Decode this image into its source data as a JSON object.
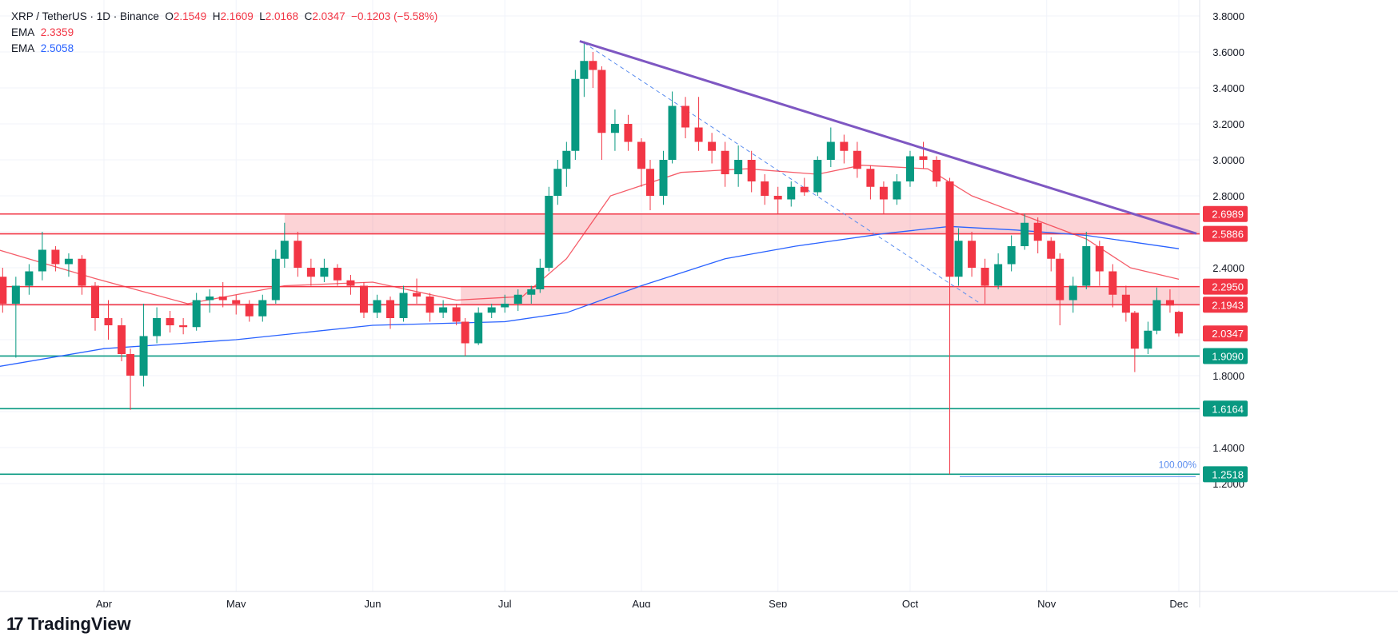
{
  "header": {
    "symbol": "XRP / TetherUS · 1D · Binance",
    "o_label": "O",
    "o": "2.1549",
    "h_label": "H",
    "h": "2.1609",
    "l_label": "L",
    "l": "2.0168",
    "c_label": "C",
    "c": "2.0347",
    "change": "−0.1203 (−5.58%)"
  },
  "ema1": {
    "label": "EMA",
    "value": "2.3359",
    "color": "#f23645"
  },
  "ema2": {
    "label": "EMA",
    "value": "2.5058",
    "color": "#2962ff"
  },
  "brand": "TradingView",
  "chart_data": {
    "type": "candlestick",
    "scale": "linear",
    "ylim": [
      1.16,
      3.86
    ],
    "xlim": [
      "2025-03-08",
      "2025-12-10"
    ],
    "grid": true,
    "y_ticks": [
      "3.8000",
      "3.6000",
      "3.4000",
      "3.2000",
      "3.0000",
      "2.8000",
      "2.4000",
      "1.8000",
      "1.4000",
      "1.2000"
    ],
    "x_ticks": [
      [
        "2025-04-01",
        "Apr"
      ],
      [
        "2025-05-01",
        "May"
      ],
      [
        "2025-06-01",
        "Jun"
      ],
      [
        "2025-07-01",
        "Jul"
      ],
      [
        "2025-08-01",
        "Aug"
      ],
      [
        "2025-09-01",
        "Sep"
      ],
      [
        "2025-10-01",
        "Oct"
      ],
      [
        "2025-11-01",
        "Nov"
      ],
      [
        "2025-12-01",
        "Dec"
      ]
    ],
    "colors": {
      "up": "#089981",
      "down": "#f23645",
      "trendline": "#7e57c2",
      "fib": "#5b8def"
    },
    "candles": [
      [
        "2025-03-09",
        2.35,
        2.4,
        2.15,
        2.2
      ],
      [
        "2025-03-12",
        2.2,
        2.35,
        1.9,
        2.3
      ],
      [
        "2025-03-15",
        2.3,
        2.42,
        2.25,
        2.38
      ],
      [
        "2025-03-18",
        2.38,
        2.6,
        2.33,
        2.5
      ],
      [
        "2025-03-21",
        2.5,
        2.52,
        2.38,
        2.42
      ],
      [
        "2025-03-24",
        2.42,
        2.48,
        2.35,
        2.45
      ],
      [
        "2025-03-27",
        2.45,
        2.47,
        2.25,
        2.3
      ],
      [
        "2025-03-30",
        2.3,
        2.32,
        2.05,
        2.12
      ],
      [
        "2025-04-02",
        2.12,
        2.22,
        2.0,
        2.08
      ],
      [
        "2025-04-05",
        2.08,
        2.12,
        1.88,
        1.92
      ],
      [
        "2025-04-07",
        1.92,
        1.95,
        1.61,
        1.8
      ],
      [
        "2025-04-10",
        1.8,
        2.2,
        1.74,
        2.02
      ],
      [
        "2025-04-13",
        2.02,
        2.18,
        1.98,
        2.12
      ],
      [
        "2025-04-16",
        2.12,
        2.16,
        2.04,
        2.08
      ],
      [
        "2025-04-19",
        2.08,
        2.12,
        2.03,
        2.07
      ],
      [
        "2025-04-22",
        2.07,
        2.26,
        2.05,
        2.22
      ],
      [
        "2025-04-25",
        2.22,
        2.28,
        2.15,
        2.24
      ],
      [
        "2025-04-28",
        2.24,
        2.32,
        2.18,
        2.22
      ],
      [
        "2025-05-01",
        2.22,
        2.25,
        2.14,
        2.2
      ],
      [
        "2025-05-04",
        2.2,
        2.22,
        2.1,
        2.13
      ],
      [
        "2025-05-07",
        2.13,
        2.25,
        2.1,
        2.22
      ],
      [
        "2025-05-10",
        2.22,
        2.5,
        2.2,
        2.45
      ],
      [
        "2025-05-12",
        2.45,
        2.65,
        2.4,
        2.55
      ],
      [
        "2025-05-15",
        2.55,
        2.6,
        2.35,
        2.4
      ],
      [
        "2025-05-18",
        2.4,
        2.45,
        2.3,
        2.35
      ],
      [
        "2025-05-21",
        2.35,
        2.45,
        2.32,
        2.4
      ],
      [
        "2025-05-24",
        2.4,
        2.42,
        2.3,
        2.33
      ],
      [
        "2025-05-27",
        2.33,
        2.36,
        2.25,
        2.3
      ],
      [
        "2025-05-30",
        2.3,
        2.32,
        2.12,
        2.15
      ],
      [
        "2025-06-02",
        2.15,
        2.25,
        2.12,
        2.22
      ],
      [
        "2025-06-05",
        2.22,
        2.24,
        2.06,
        2.12
      ],
      [
        "2025-06-08",
        2.12,
        2.3,
        2.1,
        2.26
      ],
      [
        "2025-06-11",
        2.26,
        2.34,
        2.2,
        2.24
      ],
      [
        "2025-06-14",
        2.24,
        2.26,
        2.1,
        2.15
      ],
      [
        "2025-06-17",
        2.15,
        2.22,
        2.12,
        2.18
      ],
      [
        "2025-06-20",
        2.18,
        2.2,
        2.08,
        2.1
      ],
      [
        "2025-06-22",
        2.1,
        2.12,
        1.91,
        1.98
      ],
      [
        "2025-06-25",
        1.98,
        2.18,
        1.97,
        2.15
      ],
      [
        "2025-06-28",
        2.15,
        2.2,
        2.12,
        2.18
      ],
      [
        "2025-07-01",
        2.18,
        2.25,
        2.15,
        2.2
      ],
      [
        "2025-07-04",
        2.2,
        2.28,
        2.16,
        2.25
      ],
      [
        "2025-07-07",
        2.25,
        2.3,
        2.2,
        2.28
      ],
      [
        "2025-07-09",
        2.28,
        2.45,
        2.26,
        2.4
      ],
      [
        "2025-07-11",
        2.4,
        2.85,
        2.38,
        2.8
      ],
      [
        "2025-07-13",
        2.8,
        3.0,
        2.75,
        2.95
      ],
      [
        "2025-07-15",
        2.95,
        3.1,
        2.85,
        3.05
      ],
      [
        "2025-07-17",
        3.05,
        3.5,
        3.0,
        3.45
      ],
      [
        "2025-07-19",
        3.45,
        3.66,
        3.35,
        3.55
      ],
      [
        "2025-07-21",
        3.55,
        3.6,
        3.4,
        3.5
      ],
      [
        "2025-07-23",
        3.5,
        3.52,
        3.0,
        3.15
      ],
      [
        "2025-07-26",
        3.15,
        3.28,
        3.05,
        3.2
      ],
      [
        "2025-07-29",
        3.2,
        3.25,
        3.05,
        3.1
      ],
      [
        "2025-08-01",
        3.1,
        3.12,
        2.85,
        2.95
      ],
      [
        "2025-08-03",
        2.95,
        3.0,
        2.72,
        2.8
      ],
      [
        "2025-08-06",
        2.8,
        3.05,
        2.75,
        3.0
      ],
      [
        "2025-08-08",
        3.0,
        3.38,
        2.98,
        3.3
      ],
      [
        "2025-08-11",
        3.3,
        3.35,
        3.12,
        3.18
      ],
      [
        "2025-08-14",
        3.18,
        3.35,
        3.05,
        3.1
      ],
      [
        "2025-08-17",
        3.1,
        3.15,
        2.98,
        3.05
      ],
      [
        "2025-08-20",
        3.05,
        3.1,
        2.85,
        2.92
      ],
      [
        "2025-08-23",
        2.92,
        3.08,
        2.85,
        3.0
      ],
      [
        "2025-08-26",
        3.0,
        3.05,
        2.82,
        2.88
      ],
      [
        "2025-08-29",
        2.88,
        2.92,
        2.75,
        2.8
      ],
      [
        "2025-09-01",
        2.8,
        2.85,
        2.7,
        2.78
      ],
      [
        "2025-09-04",
        2.78,
        2.88,
        2.74,
        2.85
      ],
      [
        "2025-09-07",
        2.85,
        2.9,
        2.8,
        2.82
      ],
      [
        "2025-09-10",
        2.82,
        3.02,
        2.8,
        3.0
      ],
      [
        "2025-09-13",
        3.0,
        3.18,
        2.96,
        3.1
      ],
      [
        "2025-09-16",
        3.1,
        3.14,
        2.98,
        3.05
      ],
      [
        "2025-09-19",
        3.05,
        3.1,
        2.9,
        2.95
      ],
      [
        "2025-09-22",
        2.95,
        2.97,
        2.78,
        2.85
      ],
      [
        "2025-09-25",
        2.85,
        2.88,
        2.7,
        2.78
      ],
      [
        "2025-09-28",
        2.78,
        2.92,
        2.75,
        2.88
      ],
      [
        "2025-10-01",
        2.88,
        3.05,
        2.85,
        3.02
      ],
      [
        "2025-10-04",
        3.02,
        3.1,
        2.95,
        3.0
      ],
      [
        "2025-10-07",
        3.0,
        3.02,
        2.85,
        2.88
      ],
      [
        "2025-10-10",
        2.88,
        2.9,
        1.2518,
        2.35
      ],
      [
        "2025-10-12",
        2.35,
        2.62,
        2.3,
        2.55
      ],
      [
        "2025-10-15",
        2.55,
        2.6,
        2.35,
        2.4
      ],
      [
        "2025-10-18",
        2.4,
        2.45,
        2.2,
        2.3
      ],
      [
        "2025-10-21",
        2.3,
        2.48,
        2.28,
        2.42
      ],
      [
        "2025-10-24",
        2.42,
        2.58,
        2.38,
        2.52
      ],
      [
        "2025-10-27",
        2.52,
        2.7,
        2.5,
        2.65
      ],
      [
        "2025-10-30",
        2.65,
        2.68,
        2.48,
        2.55
      ],
      [
        "2025-11-02",
        2.55,
        2.57,
        2.38,
        2.45
      ],
      [
        "2025-11-04",
        2.45,
        2.48,
        2.08,
        2.22
      ],
      [
        "2025-11-07",
        2.22,
        2.35,
        2.15,
        2.3
      ],
      [
        "2025-11-10",
        2.3,
        2.6,
        2.28,
        2.52
      ],
      [
        "2025-11-13",
        2.52,
        2.55,
        2.3,
        2.38
      ],
      [
        "2025-11-16",
        2.38,
        2.42,
        2.18,
        2.25
      ],
      [
        "2025-11-19",
        2.25,
        2.3,
        2.1,
        2.15
      ],
      [
        "2025-11-21",
        2.15,
        2.16,
        1.82,
        1.95
      ],
      [
        "2025-11-24",
        1.95,
        2.1,
        1.92,
        2.05
      ],
      [
        "2025-11-26",
        2.05,
        2.29,
        2.03,
        2.22
      ],
      [
        "2025-11-29",
        2.22,
        2.28,
        2.15,
        2.19
      ],
      [
        "2025-12-01",
        2.1549,
        2.1609,
        2.0168,
        2.0347
      ]
    ],
    "ema_fast": [
      [
        "2025-03-08",
        2.5
      ],
      [
        "2025-03-30",
        2.34
      ],
      [
        "2025-04-20",
        2.2
      ],
      [
        "2025-05-12",
        2.3
      ],
      [
        "2025-06-01",
        2.32
      ],
      [
        "2025-06-20",
        2.22
      ],
      [
        "2025-07-05",
        2.24
      ],
      [
        "2025-07-15",
        2.45
      ],
      [
        "2025-07-25",
        2.8
      ],
      [
        "2025-08-10",
        2.93
      ],
      [
        "2025-08-25",
        2.95
      ],
      [
        "2025-09-10",
        2.92
      ],
      [
        "2025-09-20",
        2.97
      ],
      [
        "2025-10-05",
        2.95
      ],
      [
        "2025-10-15",
        2.8
      ],
      [
        "2025-10-28",
        2.68
      ],
      [
        "2025-11-10",
        2.56
      ],
      [
        "2025-11-20",
        2.4
      ],
      [
        "2025-12-01",
        2.3359
      ]
    ],
    "ema_slow": [
      [
        "2025-03-08",
        1.85
      ],
      [
        "2025-04-01",
        1.95
      ],
      [
        "2025-05-01",
        2.0
      ],
      [
        "2025-06-01",
        2.08
      ],
      [
        "2025-07-01",
        2.1
      ],
      [
        "2025-07-15",
        2.15
      ],
      [
        "2025-08-01",
        2.3
      ],
      [
        "2025-08-20",
        2.45
      ],
      [
        "2025-09-05",
        2.52
      ],
      [
        "2025-09-25",
        2.59
      ],
      [
        "2025-10-10",
        2.63
      ],
      [
        "2025-10-25",
        2.61
      ],
      [
        "2025-11-10",
        2.58
      ],
      [
        "2025-12-01",
        2.5058
      ]
    ],
    "levels": [
      {
        "value": "2.6989",
        "color": "#f23645"
      },
      {
        "value": "2.5886",
        "color": "#f23645"
      },
      {
        "value": "2.2950",
        "color": "#f23645"
      },
      {
        "value": "2.1943",
        "color": "#f23645"
      },
      {
        "value": "1.9090",
        "color": "#089981"
      },
      {
        "value": "1.6164",
        "color": "#089981"
      },
      {
        "value": "1.2518",
        "color": "#089981"
      }
    ],
    "zones": [
      {
        "from": "2025-05-12",
        "low": 2.5886,
        "high": 2.6989
      },
      {
        "from": "2025-06-21",
        "low": 2.1943,
        "high": 2.295
      }
    ],
    "trendline": [
      [
        "2025-07-18",
        3.66
      ],
      [
        "2025-12-05",
        2.59
      ]
    ],
    "fib_line": [
      [
        "2025-07-19",
        3.65
      ],
      [
        "2025-10-17",
        2.2
      ]
    ],
    "fib_label": "100.00%",
    "last_price": {
      "value": "2.0347",
      "color": "#f23645"
    }
  }
}
